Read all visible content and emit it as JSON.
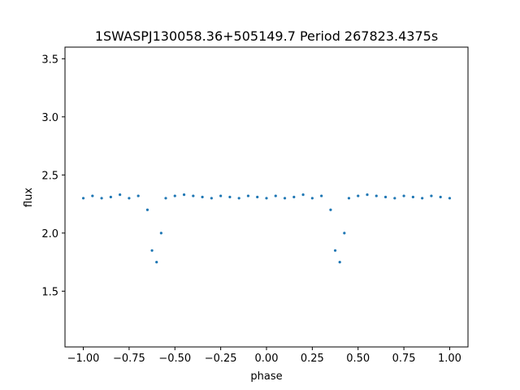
{
  "chart_data": {
    "type": "scatter",
    "title": "1SWASPJ130058.36+505149.7 Period 267823.4375s",
    "xlabel": "phase",
    "ylabel": "flux",
    "xlim": [
      -1.1,
      1.1
    ],
    "ylim": [
      1.02,
      3.6
    ],
    "xticks": [
      -1.0,
      -0.75,
      -0.5,
      -0.25,
      0.0,
      0.25,
      0.5,
      0.75,
      1.0
    ],
    "xtick_labels": [
      "−1.00",
      "−0.75",
      "−0.50",
      "−0.25",
      "0.00",
      "0.25",
      "0.50",
      "0.75",
      "1.00"
    ],
    "yticks": [
      1.5,
      2.0,
      2.5,
      3.0,
      3.5
    ],
    "ytick_labels": [
      "1.5",
      "2.0",
      "2.5",
      "3.0",
      "3.5"
    ],
    "grid": false,
    "marker_color": "#1f77b4",
    "series": [
      {
        "x": [
          -1.0,
          -0.95,
          -0.9,
          -0.85,
          -0.8,
          -0.75,
          -0.7,
          -0.65,
          -0.625,
          -0.6,
          -0.575,
          -0.55,
          -0.5,
          -0.45,
          -0.4,
          -0.35,
          -0.3,
          -0.25,
          -0.2,
          -0.15,
          -0.1,
          -0.05,
          0.0,
          0.05,
          0.1,
          0.15,
          0.2,
          0.25,
          0.3,
          0.35,
          0.375,
          0.4,
          0.425,
          0.45,
          0.5,
          0.55,
          0.6,
          0.65,
          0.7,
          0.75,
          0.8,
          0.85,
          0.9,
          0.95,
          1.0
        ],
        "y": [
          2.3,
          2.32,
          2.3,
          2.31,
          2.33,
          2.3,
          2.32,
          2.2,
          1.85,
          1.75,
          2.0,
          2.3,
          2.32,
          2.33,
          2.32,
          2.31,
          2.3,
          2.32,
          2.31,
          2.3,
          2.32,
          2.31,
          2.3,
          2.32,
          2.3,
          2.31,
          2.33,
          2.3,
          2.32,
          2.2,
          1.85,
          1.75,
          2.0,
          2.3,
          2.32,
          2.33,
          2.32,
          2.31,
          2.3,
          2.32,
          2.31,
          2.3,
          2.32,
          2.31,
          2.3
        ]
      }
    ]
  }
}
